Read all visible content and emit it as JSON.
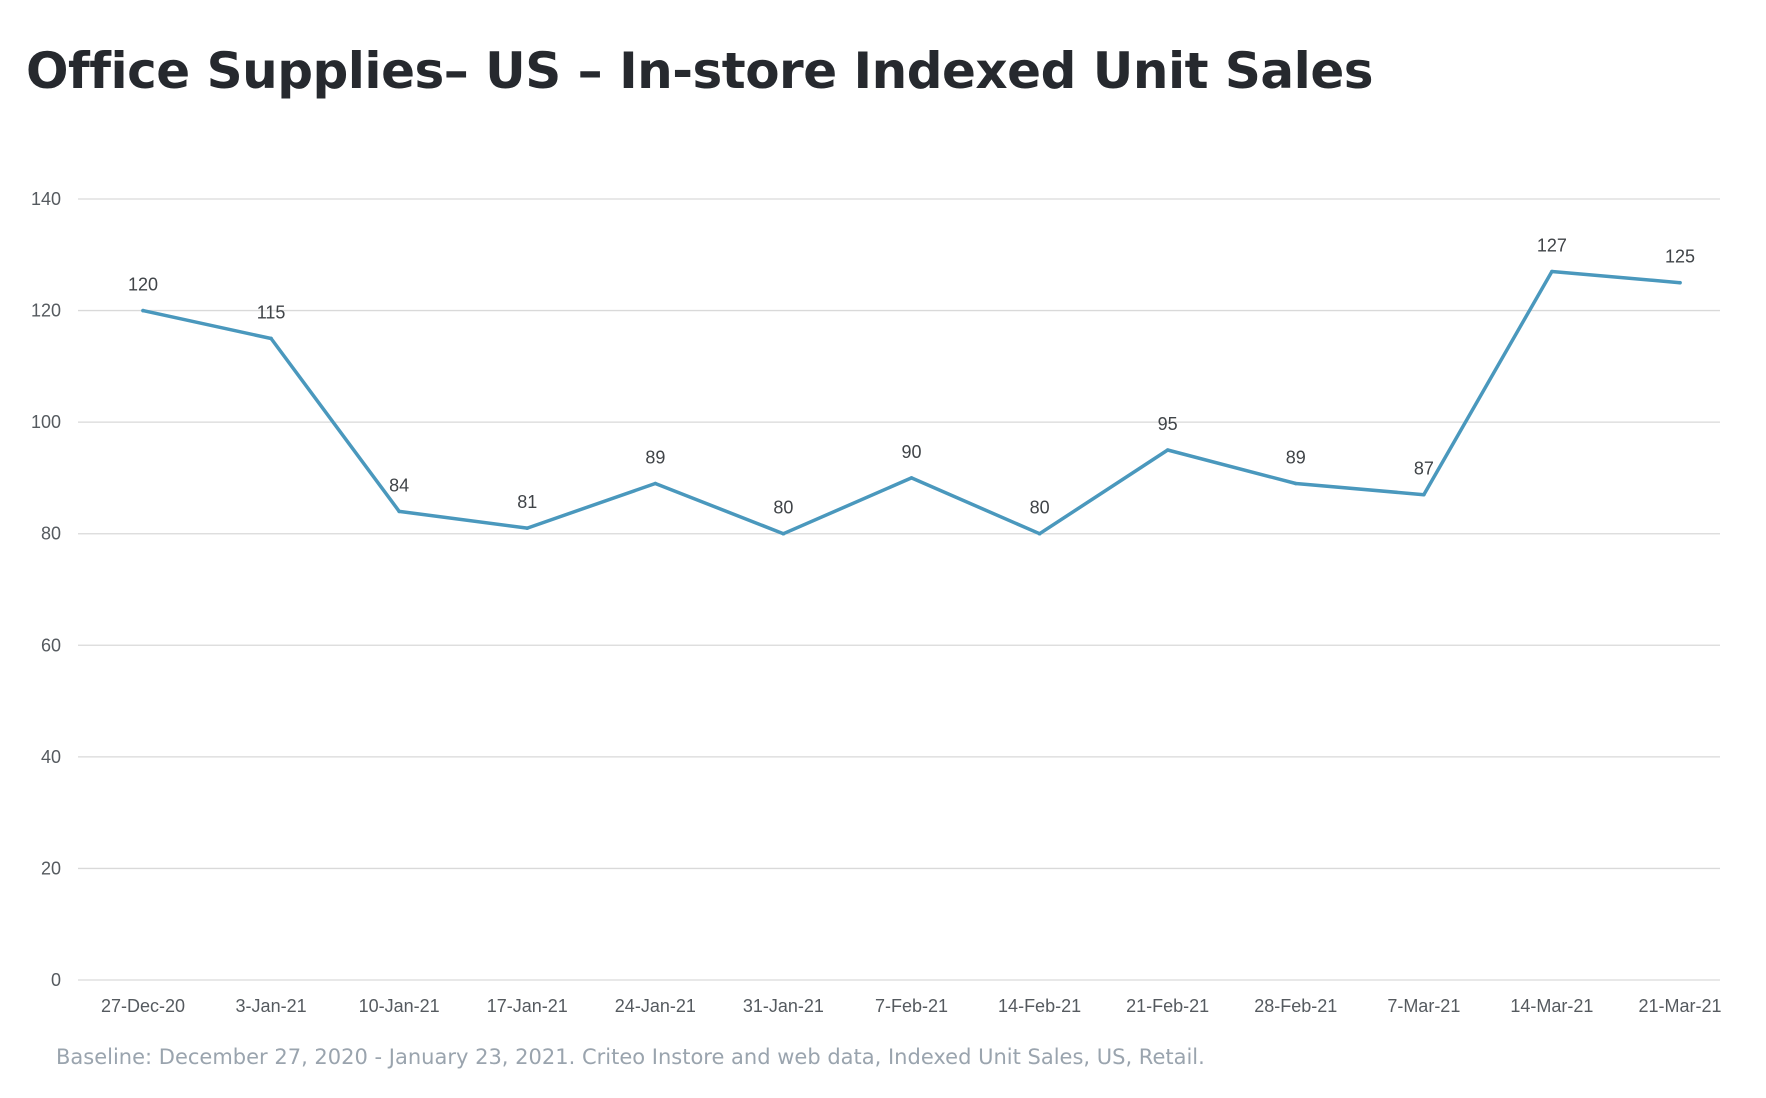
{
  "title": "Office Supplies– US – In-store Indexed Unit Sales",
  "footnote": "Baseline: December 27, 2020 - January 23, 2021. Criteo Instore and web data, Indexed Unit Sales, US, Retail.",
  "colors": {
    "line": "#4a98bd",
    "grid": "#d9d9d9",
    "title": "#26292e",
    "footnote": "#9aa4ae"
  },
  "chart_data": {
    "type": "line",
    "title": "Office Supplies– US – In-store Indexed Unit Sales",
    "xlabel": "",
    "ylabel": "",
    "ylim": [
      0,
      140
    ],
    "yticks": [
      0,
      20,
      40,
      60,
      80,
      100,
      120,
      140
    ],
    "grid": true,
    "legend": "none",
    "categories": [
      "27-Dec-20",
      "3-Jan-21",
      "10-Jan-21",
      "17-Jan-21",
      "24-Jan-21",
      "31-Jan-21",
      "7-Feb-21",
      "14-Feb-21",
      "21-Feb-21",
      "28-Feb-21",
      "7-Mar-21",
      "14-Mar-21",
      "21-Mar-21"
    ],
    "values": [
      120,
      115,
      84,
      81,
      89,
      80,
      90,
      80,
      95,
      89,
      87,
      127,
      125
    ],
    "labels": [
      "120",
      "115",
      "84",
      "81",
      "89",
      "80",
      "90",
      "80",
      "95",
      "89",
      "87",
      "127",
      "125"
    ]
  }
}
